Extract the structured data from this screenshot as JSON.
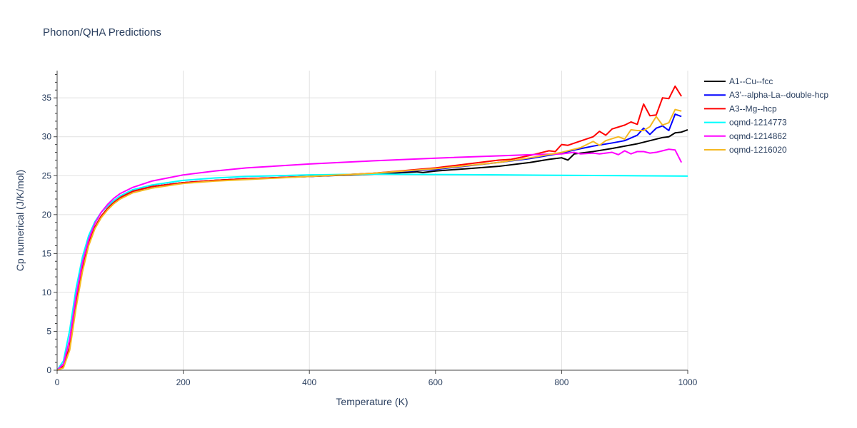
{
  "chart_data": {
    "type": "line",
    "title": "Phonon/QHA Predictions",
    "xlabel": "Temperature (K)",
    "ylabel": "Cp numerical (J/K/mol)",
    "xlim": [
      0,
      1000
    ],
    "ylim": [
      0,
      38.5
    ],
    "x_ticks": [
      0,
      200,
      400,
      600,
      800,
      1000
    ],
    "y_ticks": [
      0,
      5,
      10,
      15,
      20,
      25,
      30,
      35
    ],
    "grid": true,
    "legend_position": "right",
    "series": [
      {
        "name": "A1--Cu--fcc",
        "color": "#000000",
        "points": [
          [
            0,
            0
          ],
          [
            10,
            0.5
          ],
          [
            20,
            3
          ],
          [
            30,
            8.5
          ],
          [
            40,
            13
          ],
          [
            50,
            16.3
          ],
          [
            60,
            18.4
          ],
          [
            70,
            19.8
          ],
          [
            80,
            20.8
          ],
          [
            90,
            21.6
          ],
          [
            100,
            22.2
          ],
          [
            120,
            23
          ],
          [
            150,
            23.6
          ],
          [
            200,
            24.1
          ],
          [
            250,
            24.4
          ],
          [
            300,
            24.6
          ],
          [
            400,
            24.9
          ],
          [
            500,
            25.2
          ],
          [
            550,
            25.4
          ],
          [
            570,
            25.5
          ],
          [
            580,
            25.4
          ],
          [
            600,
            25.6
          ],
          [
            650,
            25.9
          ],
          [
            700,
            26.2
          ],
          [
            750,
            26.7
          ],
          [
            780,
            27.1
          ],
          [
            800,
            27.3
          ],
          [
            810,
            27
          ],
          [
            820,
            27.8
          ],
          [
            830,
            27.9
          ],
          [
            850,
            28.1
          ],
          [
            880,
            28.5
          ],
          [
            920,
            29.1
          ],
          [
            940,
            29.5
          ],
          [
            960,
            29.9
          ],
          [
            970,
            30
          ],
          [
            980,
            30.5
          ],
          [
            990,
            30.6
          ],
          [
            1000,
            30.9
          ]
        ]
      },
      {
        "name": "A3'--alpha-La--double-hcp",
        "color": "#0000ff",
        "points": [
          [
            0,
            0
          ],
          [
            10,
            0.5
          ],
          [
            20,
            3
          ],
          [
            30,
            8.5
          ],
          [
            40,
            13
          ],
          [
            50,
            16.3
          ],
          [
            60,
            18.4
          ],
          [
            70,
            19.8
          ],
          [
            80,
            20.8
          ],
          [
            90,
            21.6
          ],
          [
            100,
            22.2
          ],
          [
            120,
            23
          ],
          [
            150,
            23.6
          ],
          [
            200,
            24.1
          ],
          [
            250,
            24.4
          ],
          [
            300,
            24.6
          ],
          [
            400,
            24.9
          ],
          [
            500,
            25.3
          ],
          [
            600,
            25.8
          ],
          [
            700,
            26.7
          ],
          [
            750,
            27.2
          ],
          [
            800,
            27.9
          ],
          [
            820,
            28.3
          ],
          [
            850,
            28.8
          ],
          [
            880,
            29.2
          ],
          [
            900,
            29.5
          ],
          [
            920,
            30.2
          ],
          [
            930,
            31.1
          ],
          [
            940,
            30.3
          ],
          [
            950,
            31.1
          ],
          [
            960,
            31.4
          ],
          [
            970,
            30.8
          ],
          [
            980,
            32.9
          ],
          [
            990,
            32.6
          ]
        ]
      },
      {
        "name": "A3--Mg--hcp",
        "color": "#ff0000",
        "points": [
          [
            0,
            0
          ],
          [
            10,
            0.5
          ],
          [
            20,
            3
          ],
          [
            30,
            8.5
          ],
          [
            40,
            13
          ],
          [
            50,
            16.3
          ],
          [
            60,
            18.4
          ],
          [
            70,
            19.8
          ],
          [
            80,
            20.8
          ],
          [
            90,
            21.6
          ],
          [
            100,
            22.2
          ],
          [
            120,
            23
          ],
          [
            150,
            23.6
          ],
          [
            200,
            24.1
          ],
          [
            250,
            24.4
          ],
          [
            300,
            24.6
          ],
          [
            400,
            24.9
          ],
          [
            500,
            25.3
          ],
          [
            600,
            26
          ],
          [
            700,
            27
          ],
          [
            720,
            27.1
          ],
          [
            750,
            27.6
          ],
          [
            780,
            28.2
          ],
          [
            790,
            28.1
          ],
          [
            800,
            29
          ],
          [
            810,
            28.9
          ],
          [
            850,
            30
          ],
          [
            860,
            30.7
          ],
          [
            870,
            30.2
          ],
          [
            880,
            31
          ],
          [
            900,
            31.5
          ],
          [
            910,
            31.9
          ],
          [
            920,
            31.6
          ],
          [
            930,
            34.2
          ],
          [
            940,
            32.7
          ],
          [
            950,
            32.8
          ],
          [
            960,
            35
          ],
          [
            970,
            34.9
          ],
          [
            980,
            36.5
          ],
          [
            990,
            35.2
          ]
        ]
      },
      {
        "name": "oqmd-1214773",
        "color": "#00ffff",
        "points": [
          [
            0,
            0
          ],
          [
            10,
            1.2
          ],
          [
            20,
            5.2
          ],
          [
            30,
            10.5
          ],
          [
            40,
            14.5
          ],
          [
            50,
            17.3
          ],
          [
            60,
            19.1
          ],
          [
            70,
            20.3
          ],
          [
            80,
            21.1
          ],
          [
            90,
            21.8
          ],
          [
            100,
            22.4
          ],
          [
            120,
            23.2
          ],
          [
            150,
            23.8
          ],
          [
            200,
            24.4
          ],
          [
            250,
            24.7
          ],
          [
            300,
            24.9
          ],
          [
            400,
            25.1
          ],
          [
            500,
            25.2
          ],
          [
            600,
            25.15
          ],
          [
            700,
            25.1
          ],
          [
            800,
            25.05
          ],
          [
            900,
            25
          ],
          [
            1000,
            24.95
          ]
        ]
      },
      {
        "name": "oqmd-1214862",
        "color": "#ff00ff",
        "points": [
          [
            0,
            0
          ],
          [
            10,
            0.8
          ],
          [
            20,
            4
          ],
          [
            30,
            9.5
          ],
          [
            40,
            13.8
          ],
          [
            50,
            16.8
          ],
          [
            60,
            18.9
          ],
          [
            70,
            20.3
          ],
          [
            80,
            21.3
          ],
          [
            90,
            22.1
          ],
          [
            100,
            22.7
          ],
          [
            120,
            23.5
          ],
          [
            150,
            24.3
          ],
          [
            200,
            25.1
          ],
          [
            250,
            25.6
          ],
          [
            300,
            26
          ],
          [
            400,
            26.5
          ],
          [
            500,
            26.9
          ],
          [
            600,
            27.25
          ],
          [
            700,
            27.55
          ],
          [
            750,
            27.7
          ],
          [
            800,
            27.8
          ],
          [
            820,
            28
          ],
          [
            830,
            27.8
          ],
          [
            850,
            27.9
          ],
          [
            860,
            27.8
          ],
          [
            880,
            28
          ],
          [
            890,
            27.7
          ],
          [
            900,
            28.2
          ],
          [
            910,
            27.8
          ],
          [
            920,
            28.1
          ],
          [
            930,
            28.1
          ],
          [
            940,
            27.9
          ],
          [
            950,
            28
          ],
          [
            960,
            28.2
          ],
          [
            970,
            28.4
          ],
          [
            980,
            28.3
          ],
          [
            990,
            26.7
          ]
        ]
      },
      {
        "name": "oqmd-1216020",
        "color": "#f5b921",
        "points": [
          [
            0,
            0
          ],
          [
            10,
            0.3
          ],
          [
            20,
            2.6
          ],
          [
            30,
            8
          ],
          [
            40,
            12.6
          ],
          [
            50,
            16
          ],
          [
            60,
            18.2
          ],
          [
            70,
            19.6
          ],
          [
            80,
            20.6
          ],
          [
            90,
            21.4
          ],
          [
            100,
            22
          ],
          [
            120,
            22.8
          ],
          [
            150,
            23.4
          ],
          [
            200,
            24
          ],
          [
            250,
            24.3
          ],
          [
            300,
            24.5
          ],
          [
            400,
            24.9
          ],
          [
            500,
            25.3
          ],
          [
            600,
            25.9
          ],
          [
            700,
            26.7
          ],
          [
            750,
            27.3
          ],
          [
            800,
            28
          ],
          [
            830,
            28.6
          ],
          [
            850,
            29.4
          ],
          [
            860,
            28.9
          ],
          [
            870,
            29.5
          ],
          [
            890,
            30
          ],
          [
            900,
            29.7
          ],
          [
            910,
            30.9
          ],
          [
            920,
            30.8
          ],
          [
            930,
            30.8
          ],
          [
            940,
            31.3
          ],
          [
            950,
            32.6
          ],
          [
            960,
            31.5
          ],
          [
            970,
            31.8
          ],
          [
            980,
            33.5
          ],
          [
            990,
            33.3
          ]
        ]
      }
    ]
  }
}
